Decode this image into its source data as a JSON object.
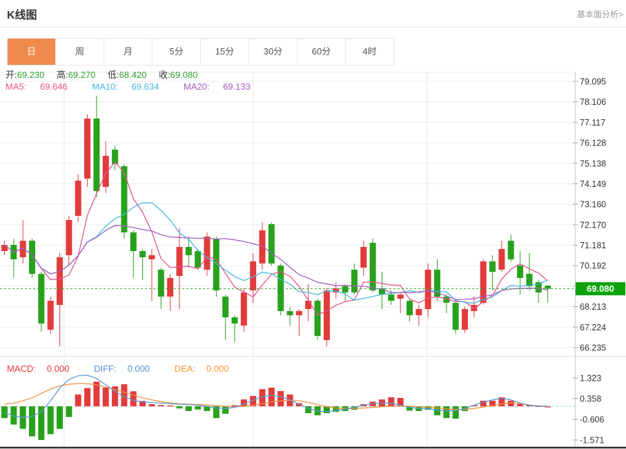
{
  "header": {
    "title": "K线图",
    "link_label": "基本面分析>"
  },
  "tabs": {
    "active": "日",
    "items": [
      "日",
      "周",
      "月",
      "5分",
      "15分",
      "30分",
      "60分",
      "4时"
    ]
  },
  "ohlc_legend": {
    "open_label": "开:",
    "open": "69.230",
    "high_label": "高:",
    "high": "69.270",
    "low_label": "低:",
    "low": "68.420",
    "close_label": "收:",
    "close": "69.080"
  },
  "ma_legend": {
    "ma5_label": "MA5:",
    "ma5": "69.646",
    "ma10_label": "MA10:",
    "ma10": "69.634",
    "ma20_label": "MA20:",
    "ma20": "69.133"
  },
  "macd_legend": {
    "macd_label": "MACD:",
    "macd": "0.000",
    "diff_label": "DIFF:",
    "diff": "0.000",
    "dea_label": "DEA:",
    "dea": "0.000"
  },
  "colors": {
    "tab_active_bg": "#ef8a4c",
    "up": "#e23b3b",
    "down": "#28a21c",
    "badge_bg": "#0da30d",
    "price_line": "#2fa32f",
    "ma5": "#e8538f",
    "ma10": "#45b7de",
    "ma20": "#a55cc0",
    "dif_line": "#5b9bd5",
    "dea_line": "#f0923f",
    "grid": "#ededed",
    "axis": "#cccccc",
    "tick_text": "#333333"
  },
  "chart_data": {
    "type": "candlestick+macd",
    "legend_position": "top-left",
    "grid": "on",
    "price_axis_ticks": [
      "79.095",
      "78.106",
      "77.117",
      "76.128",
      "75.138",
      "74.149",
      "73.160",
      "72.170",
      "71.181",
      "70.192",
      "69.203",
      "68.213",
      "67.224",
      "66.235"
    ],
    "price_axis_range": [
      66.0,
      79.4
    ],
    "current_price": "69.080",
    "macd_axis_ticks": [
      "1.323",
      "0.358",
      "-0.606",
      "-1.571"
    ],
    "candles_ohlc": [
      [
        70.9,
        71.4,
        70.7,
        71.2
      ],
      [
        71.2,
        71.5,
        69.6,
        70.5
      ],
      [
        70.6,
        72.4,
        70.3,
        71.4
      ],
      [
        71.4,
        71.5,
        69.6,
        69.8
      ],
      [
        69.8,
        69.9,
        67.0,
        67.4
      ],
      [
        67.1,
        68.7,
        66.9,
        68.5
      ],
      [
        68.3,
        70.8,
        66.3,
        70.6
      ],
      [
        70.7,
        72.6,
        70.2,
        72.4
      ],
      [
        72.6,
        74.6,
        72.3,
        74.3
      ],
      [
        74.4,
        77.5,
        74.0,
        77.3
      ],
      [
        77.3,
        78.4,
        73.5,
        73.8
      ],
      [
        74.0,
        76.2,
        73.7,
        75.5
      ],
      [
        75.8,
        76.0,
        74.8,
        75.1
      ],
      [
        75.0,
        75.1,
        71.5,
        71.8
      ],
      [
        71.8,
        71.9,
        69.6,
        70.9
      ],
      [
        70.9,
        71.0,
        69.5,
        70.6
      ],
      [
        70.5,
        71.0,
        68.5,
        70.7
      ],
      [
        70.0,
        70.1,
        68.1,
        68.7
      ],
      [
        68.7,
        69.8,
        68.0,
        69.6
      ],
      [
        69.7,
        72.0,
        68.1,
        71.1
      ],
      [
        71.1,
        71.6,
        70.1,
        70.7
      ],
      [
        70.9,
        71.0,
        70.0,
        70.1
      ],
      [
        70.0,
        71.8,
        69.7,
        71.6
      ],
      [
        71.5,
        71.6,
        68.7,
        69.0
      ],
      [
        68.7,
        68.8,
        66.6,
        67.7
      ],
      [
        67.7,
        67.8,
        66.5,
        67.4
      ],
      [
        67.3,
        69.1,
        67.0,
        68.9
      ],
      [
        69.0,
        70.8,
        68.4,
        70.4
      ],
      [
        70.3,
        72.3,
        70.0,
        71.9
      ],
      [
        72.2,
        72.3,
        70.2,
        70.3
      ],
      [
        70.2,
        70.3,
        67.8,
        68.0
      ],
      [
        68.0,
        68.2,
        67.3,
        67.8
      ],
      [
        67.8,
        68.1,
        66.8,
        68.0
      ],
      [
        68.1,
        69.3,
        67.5,
        68.5
      ],
      [
        68.5,
        68.6,
        66.6,
        66.8
      ],
      [
        66.6,
        69.1,
        66.3,
        69.0
      ],
      [
        68.9,
        69.4,
        68.6,
        69.1
      ],
      [
        69.2,
        69.3,
        68.5,
        68.9
      ],
      [
        70.0,
        70.3,
        68.8,
        68.9
      ],
      [
        70.1,
        71.4,
        69.7,
        71.1
      ],
      [
        71.3,
        71.5,
        68.9,
        69.0
      ],
      [
        69.1,
        69.9,
        68.1,
        68.8
      ],
      [
        68.8,
        69.0,
        68.3,
        68.5
      ],
      [
        68.6,
        68.9,
        67.9,
        68.8
      ],
      [
        68.5,
        68.6,
        67.5,
        67.8
      ],
      [
        67.8,
        68.3,
        67.3,
        68.1
      ],
      [
        68.1,
        70.3,
        67.7,
        70.0
      ],
      [
        70.0,
        70.5,
        68.5,
        68.7
      ],
      [
        68.7,
        68.8,
        67.9,
        68.4
      ],
      [
        68.4,
        68.5,
        66.9,
        67.1
      ],
      [
        67.1,
        68.2,
        66.95,
        68.1
      ],
      [
        68.0,
        68.7,
        67.7,
        68.3
      ],
      [
        68.4,
        70.5,
        68.3,
        70.4
      ],
      [
        70.4,
        70.7,
        69.0,
        69.9
      ],
      [
        70.0,
        71.4,
        69.9,
        71.0
      ],
      [
        71.4,
        71.7,
        70.4,
        70.5
      ],
      [
        70.2,
        70.9,
        68.8,
        69.6
      ],
      [
        69.8,
        70.8,
        69.0,
        69.2
      ],
      [
        69.4,
        69.5,
        68.4,
        68.9
      ],
      [
        69.23,
        69.27,
        68.42,
        69.08
      ]
    ],
    "ma_windows": [
      5,
      10,
      20
    ],
    "macd": {
      "bar": [
        -0.55,
        -0.85,
        -1.05,
        -1.4,
        -1.57,
        -1.3,
        -1.05,
        -0.5,
        0.55,
        0.85,
        1.15,
        0.87,
        0.93,
        1.03,
        0.7,
        0.25,
        0.1,
        0.06,
        0.04,
        -0.1,
        -0.22,
        -0.15,
        -0.22,
        -0.55,
        -0.35,
        0.05,
        0.32,
        0.48,
        0.8,
        0.87,
        0.71,
        0.55,
        0.15,
        -0.32,
        -0.42,
        -0.32,
        -0.26,
        -0.22,
        -0.16,
        0.1,
        0.22,
        0.32,
        0.42,
        0.39,
        -0.2,
        -0.22,
        -0.16,
        -0.42,
        -0.55,
        -0.58,
        -0.22,
        0.05,
        0.26,
        0.26,
        0.42,
        0.26,
        0.1,
        0.05,
        0.02,
        0.0
      ],
      "dif": [
        -0.3,
        -0.45,
        -0.52,
        -0.48,
        -0.25,
        0.25,
        0.85,
        1.25,
        1.42,
        1.45,
        1.3,
        1.0,
        0.7,
        0.45,
        0.28,
        0.2,
        0.18,
        0.15,
        0.12,
        0.1,
        0.08,
        0.05,
        0.0,
        -0.08,
        -0.1,
        -0.05,
        0.1,
        0.28,
        0.45,
        0.52,
        0.45,
        0.3,
        0.1,
        -0.1,
        -0.22,
        -0.25,
        -0.2,
        -0.12,
        -0.05,
        0.05,
        0.12,
        0.16,
        0.14,
        0.05,
        -0.05,
        -0.1,
        -0.12,
        -0.18,
        -0.22,
        -0.2,
        -0.1,
        0.05,
        0.2,
        0.3,
        0.38,
        0.3,
        0.15,
        0.05,
        0.01,
        0.0
      ],
      "dea": [
        0.1,
        0.15,
        0.25,
        0.4,
        0.6,
        0.8,
        0.95,
        1.03,
        1.06,
        1.05,
        1.0,
        0.9,
        0.78,
        0.65,
        0.52,
        0.4,
        0.3,
        0.22,
        0.16,
        0.12,
        0.1,
        0.08,
        0.06,
        0.03,
        0.0,
        -0.02,
        0.0,
        0.05,
        0.12,
        0.2,
        0.25,
        0.28,
        0.26,
        0.18,
        0.08,
        -0.02,
        -0.08,
        -0.1,
        -0.1,
        -0.08,
        -0.05,
        -0.02,
        0.0,
        0.01,
        0.0,
        -0.02,
        -0.05,
        -0.08,
        -0.12,
        -0.15,
        -0.14,
        -0.1,
        -0.04,
        0.04,
        0.12,
        0.16,
        0.12,
        0.06,
        0.02,
        0.0
      ]
    }
  }
}
